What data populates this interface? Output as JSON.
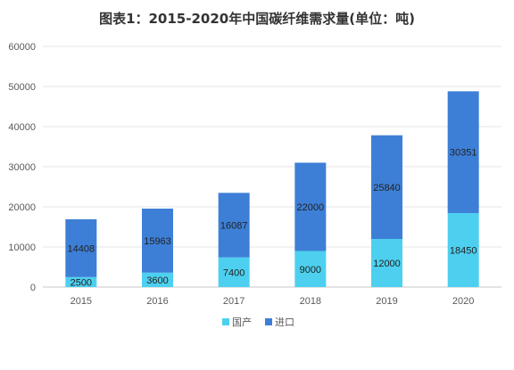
{
  "chart_data": {
    "type": "bar",
    "stacked": true,
    "title": "图表1：2015-2020年中国碳纤维需求量(单位：吨)",
    "categories": [
      "2015",
      "2016",
      "2017",
      "2018",
      "2019",
      "2020"
    ],
    "series": [
      {
        "name": "国产",
        "values": [
          2500,
          3600,
          7400,
          9000,
          12000,
          18450
        ],
        "color": "#4DD0F0"
      },
      {
        "name": "进口",
        "values": [
          14408,
          15963,
          16087,
          22000,
          25840,
          30351
        ],
        "color": "#3D7FD6"
      }
    ],
    "yticks": [
      "0",
      "10000",
      "20000",
      "30000",
      "40000",
      "50000",
      "60000"
    ],
    "ylim": [
      0,
      60000
    ],
    "grid": true,
    "legend": "bottom"
  }
}
